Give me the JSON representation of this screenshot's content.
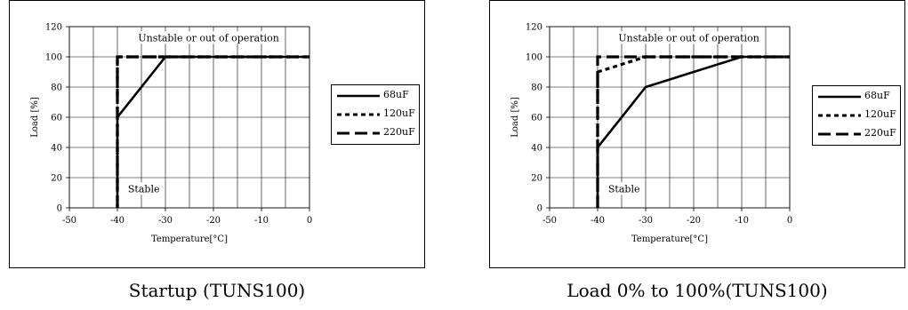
{
  "chart_data": [
    {
      "type": "line",
      "caption": "Startup (TUNS100)",
      "xlabel": "Temperature[°C]",
      "ylabel": "Load [%]",
      "xlim": [
        -50,
        0
      ],
      "ylim": [
        0,
        120
      ],
      "xticks": [
        "-50",
        "-40",
        "-30",
        "-20",
        "-10",
        "0"
      ],
      "yticks": [
        "0",
        "20",
        "40",
        "60",
        "80",
        "100",
        "120"
      ],
      "grid": true,
      "legend_position": "right",
      "annotations": {
        "upper": "Unstable or out of operation",
        "lower": "Stable"
      },
      "series": [
        {
          "name": "68uF",
          "style": "solid",
          "points": [
            [
              -40,
              0
            ],
            [
              -40,
              60
            ],
            [
              -30,
              100
            ],
            [
              0,
              100
            ]
          ]
        },
        {
          "name": "120uF",
          "style": "dotted",
          "points": [
            [
              -40,
              0
            ],
            [
              -40,
              100
            ],
            [
              0,
              100
            ]
          ]
        },
        {
          "name": "220uF",
          "style": "dashed",
          "points": [
            [
              -40,
              0
            ],
            [
              -40,
              100
            ],
            [
              0,
              100
            ]
          ]
        }
      ]
    },
    {
      "type": "line",
      "caption": "Load 0% to 100%(TUNS100)",
      "xlabel": "Temperature[°C]",
      "ylabel": "Load [%]",
      "xlim": [
        -50,
        0
      ],
      "ylim": [
        0,
        120
      ],
      "xticks": [
        "-50",
        "-40",
        "-30",
        "-20",
        "-10",
        "0"
      ],
      "yticks": [
        "0",
        "20",
        "40",
        "60",
        "80",
        "100",
        "120"
      ],
      "grid": true,
      "legend_position": "right",
      "annotations": {
        "upper": "Unstable or out of operation",
        "lower": "Stable"
      },
      "series": [
        {
          "name": "68uF",
          "style": "solid",
          "points": [
            [
              -40,
              0
            ],
            [
              -40,
              40
            ],
            [
              -30,
              80
            ],
            [
              -10,
              100
            ],
            [
              0,
              100
            ]
          ]
        },
        {
          "name": "120uF",
          "style": "dotted",
          "points": [
            [
              -40,
              0
            ],
            [
              -40,
              90
            ],
            [
              -35,
              95
            ],
            [
              -30,
              100
            ],
            [
              0,
              100
            ]
          ]
        },
        {
          "name": "220uF",
          "style": "dashed",
          "points": [
            [
              -40,
              0
            ],
            [
              -40,
              100
            ],
            [
              0,
              100
            ]
          ]
        }
      ]
    }
  ]
}
